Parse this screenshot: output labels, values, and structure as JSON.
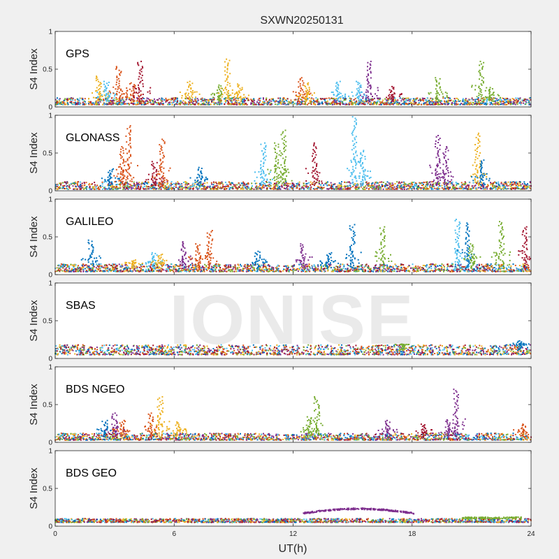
{
  "title": "SXWN20250131",
  "watermark": "IONISE",
  "xlabel": "UT(h)",
  "ylabel": "S4 Index",
  "colors": [
    "#0072BD",
    "#D95319",
    "#EDB120",
    "#7E2F8E",
    "#77AC30",
    "#4DBEEE",
    "#A2142F"
  ],
  "chart_data": [
    {
      "type": "scatter",
      "label": "GPS",
      "xlim": [
        0,
        24
      ],
      "ylim": [
        0,
        1
      ],
      "xticks": [
        "0",
        "6",
        "12",
        "18",
        "24"
      ],
      "yticks": [
        "0",
        "0.5",
        "1"
      ],
      "baseline": [
        0.03,
        0.12
      ],
      "spikes": [
        {
          "x": 2.2,
          "peak": 0.42,
          "color": 2
        },
        {
          "x": 2.6,
          "peak": 0.35,
          "color": 5
        },
        {
          "x": 3.2,
          "peak": 0.55,
          "color": 1
        },
        {
          "x": 3.9,
          "peak": 0.33,
          "color": 1
        },
        {
          "x": 4.3,
          "peak": 0.62,
          "color": 6
        },
        {
          "x": 6.8,
          "peak": 0.35,
          "color": 2
        },
        {
          "x": 8.3,
          "peak": 0.3,
          "color": 4
        },
        {
          "x": 8.7,
          "peak": 0.65,
          "color": 2
        },
        {
          "x": 9.3,
          "peak": 0.3,
          "color": 2
        },
        {
          "x": 12.4,
          "peak": 0.4,
          "color": 1
        },
        {
          "x": 12.7,
          "peak": 0.33,
          "color": 2
        },
        {
          "x": 14.3,
          "peak": 0.35,
          "color": 5
        },
        {
          "x": 15.8,
          "peak": 0.62,
          "color": 3
        },
        {
          "x": 15.3,
          "peak": 0.35,
          "color": 5
        },
        {
          "x": 17.0,
          "peak": 0.28,
          "color": 6
        },
        {
          "x": 19.3,
          "peak": 0.4,
          "color": 4
        },
        {
          "x": 21.5,
          "peak": 0.62,
          "color": 4
        },
        {
          "x": 22.0,
          "peak": 0.25,
          "color": 4
        }
      ],
      "bump": null
    },
    {
      "type": "scatter",
      "label": "GLONASS",
      "xlim": [
        0,
        24
      ],
      "ylim": [
        0,
        1
      ],
      "xticks": [
        "0",
        "6",
        "12",
        "18",
        "24"
      ],
      "yticks": [
        "0",
        "0.5",
        "1"
      ],
      "baseline": [
        0.02,
        0.12
      ],
      "spikes": [
        {
          "x": 2.8,
          "peak": 0.3,
          "color": 0
        },
        {
          "x": 3.4,
          "peak": 0.6,
          "color": 1
        },
        {
          "x": 3.7,
          "peak": 0.88,
          "color": 1
        },
        {
          "x": 5.0,
          "peak": 0.4,
          "color": 6
        },
        {
          "x": 5.4,
          "peak": 0.7,
          "color": 1
        },
        {
          "x": 7.3,
          "peak": 0.32,
          "color": 0
        },
        {
          "x": 10.5,
          "peak": 0.65,
          "color": 5
        },
        {
          "x": 11.2,
          "peak": 0.65,
          "color": 4
        },
        {
          "x": 11.5,
          "peak": 0.82,
          "color": 4
        },
        {
          "x": 13.1,
          "peak": 0.65,
          "color": 6
        },
        {
          "x": 15.1,
          "peak": 1.0,
          "color": 5
        },
        {
          "x": 15.5,
          "peak": 0.55,
          "color": 5
        },
        {
          "x": 19.3,
          "peak": 0.75,
          "color": 3
        },
        {
          "x": 19.7,
          "peak": 0.6,
          "color": 3
        },
        {
          "x": 21.3,
          "peak": 0.78,
          "color": 2
        },
        {
          "x": 21.5,
          "peak": 0.42,
          "color": 0
        }
      ],
      "bump": null
    },
    {
      "type": "scatter",
      "label": "GALILEO",
      "xlim": [
        0,
        24
      ],
      "ylim": [
        0,
        1
      ],
      "xticks": [
        "0",
        "6",
        "12",
        "18",
        "24"
      ],
      "yticks": [
        "0",
        "0.5",
        "1"
      ],
      "baseline": [
        0.04,
        0.14
      ],
      "spikes": [
        {
          "x": 1.8,
          "peak": 0.47,
          "color": 0
        },
        {
          "x": 4.0,
          "peak": 0.2,
          "color": 2
        },
        {
          "x": 5.0,
          "peak": 0.3,
          "color": 5
        },
        {
          "x": 5.3,
          "peak": 0.28,
          "color": 2
        },
        {
          "x": 6.5,
          "peak": 0.45,
          "color": 3
        },
        {
          "x": 7.2,
          "peak": 0.42,
          "color": 1
        },
        {
          "x": 7.8,
          "peak": 0.6,
          "color": 1
        },
        {
          "x": 10.2,
          "peak": 0.32,
          "color": 0
        },
        {
          "x": 12.5,
          "peak": 0.42,
          "color": 3
        },
        {
          "x": 13.8,
          "peak": 0.3,
          "color": 0
        },
        {
          "x": 15.0,
          "peak": 0.68,
          "color": 0
        },
        {
          "x": 16.5,
          "peak": 0.65,
          "color": 4
        },
        {
          "x": 20.3,
          "peak": 0.75,
          "color": 5
        },
        {
          "x": 20.8,
          "peak": 0.7,
          "color": 0
        },
        {
          "x": 21.0,
          "peak": 0.42,
          "color": 4
        },
        {
          "x": 22.5,
          "peak": 0.72,
          "color": 4
        },
        {
          "x": 23.7,
          "peak": 0.65,
          "color": 6
        }
      ],
      "bump": null
    },
    {
      "type": "scatter",
      "label": "SBAS",
      "xlim": [
        0,
        24
      ],
      "ylim": [
        0,
        1
      ],
      "xticks": [
        "0",
        "6",
        "12",
        "18",
        "24"
      ],
      "yticks": [
        "0",
        "0.5",
        "1"
      ],
      "baseline": [
        0.05,
        0.18
      ],
      "spikes": [
        {
          "x": 17.5,
          "peak": 0.2,
          "color": 4
        },
        {
          "x": 23.4,
          "peak": 0.24,
          "color": 0
        }
      ],
      "bump": null
    },
    {
      "type": "scatter",
      "label": "BDS NGEO",
      "xlim": [
        0,
        24
      ],
      "ylim": [
        0,
        1
      ],
      "xticks": [
        "0",
        "6",
        "12",
        "18",
        "24"
      ],
      "yticks": [
        "0",
        "0.5",
        "1"
      ],
      "baseline": [
        0.03,
        0.12
      ],
      "spikes": [
        {
          "x": 2.5,
          "peak": 0.3,
          "color": 0
        },
        {
          "x": 3.0,
          "peak": 0.4,
          "color": 3
        },
        {
          "x": 3.4,
          "peak": 0.3,
          "color": 1
        },
        {
          "x": 4.8,
          "peak": 0.4,
          "color": 1
        },
        {
          "x": 5.3,
          "peak": 0.62,
          "color": 2
        },
        {
          "x": 6.2,
          "peak": 0.28,
          "color": 2
        },
        {
          "x": 12.8,
          "peak": 0.35,
          "color": 4
        },
        {
          "x": 13.2,
          "peak": 0.62,
          "color": 4
        },
        {
          "x": 16.8,
          "peak": 0.3,
          "color": 3
        },
        {
          "x": 18.6,
          "peak": 0.25,
          "color": 6
        },
        {
          "x": 19.8,
          "peak": 0.3,
          "color": 3
        },
        {
          "x": 20.2,
          "peak": 0.72,
          "color": 3
        },
        {
          "x": 23.6,
          "peak": 0.25,
          "color": 1
        }
      ],
      "bump": null
    },
    {
      "type": "scatter",
      "label": "BDS GEO",
      "xlim": [
        0,
        24
      ],
      "ylim": [
        0,
        1
      ],
      "xticks": [
        "0",
        "6",
        "12",
        "18",
        "24"
      ],
      "yticks": [
        "0",
        "0.5",
        "1"
      ],
      "baseline": [
        0.05,
        0.1
      ],
      "spikes": [],
      "bump": {
        "x0": 12.5,
        "x1": 18.1,
        "low": 0.17,
        "high": 0.23,
        "color": 3,
        "tail": {
          "x0": 20.5,
          "x1": 23.5,
          "level": 0.11,
          "color": 4
        }
      }
    }
  ]
}
